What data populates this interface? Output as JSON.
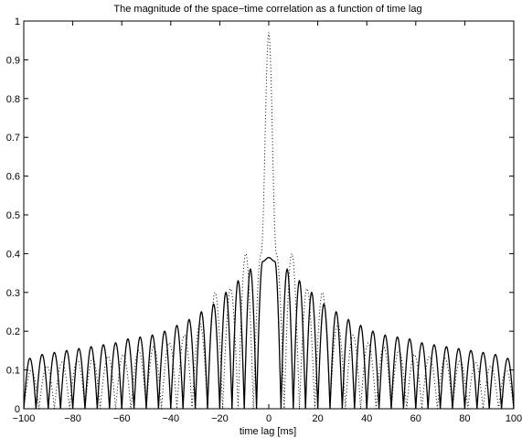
{
  "chart_data": {
    "type": "line",
    "title": "The magnitude of the space−time correlation as a function of time lag",
    "xlabel": "time lag [ms]",
    "ylabel": "",
    "xlim": [
      -100,
      100
    ],
    "ylim": [
      0,
      1
    ],
    "x_ticks": [
      -100,
      -80,
      -60,
      -40,
      -20,
      0,
      20,
      40,
      60,
      80,
      100
    ],
    "x_tick_labels": [
      "−100",
      "−80",
      "−60",
      "−40",
      "−20",
      "0",
      "20",
      "40",
      "60",
      "80",
      "100"
    ],
    "y_ticks": [
      0,
      0.1,
      0.2,
      0.3,
      0.4,
      0.5,
      0.6,
      0.7,
      0.8,
      0.9,
      1
    ],
    "y_tick_labels": [
      "0",
      "0.1",
      "0.2",
      "0.3",
      "0.4",
      "0.5",
      "0.6",
      "0.7",
      "0.8",
      "0.9",
      "1"
    ],
    "grid": false,
    "legend": "none",
    "series": [
      {
        "style": "solid",
        "color": "#000000",
        "x": [
          -100,
          -97.5,
          -95,
          -92.5,
          -90,
          -87.5,
          -85,
          -82.5,
          -80,
          -77.5,
          -75,
          -72.5,
          -70,
          -67.5,
          -65,
          -62.5,
          -60,
          -57.5,
          -55,
          -52.5,
          -50,
          -47.5,
          -45,
          -42.5,
          -40,
          -37.5,
          -35,
          -32.5,
          -30,
          -27.5,
          -25,
          -22.5,
          -20,
          -17.5,
          -15,
          -12.5,
          -10,
          -7.5,
          -5,
          -2.5,
          0,
          2.5,
          5,
          7.5,
          10,
          12.5,
          15,
          17.5,
          20,
          22.5,
          25,
          27.5,
          30,
          32.5,
          35,
          37.5,
          40,
          42.5,
          45,
          47.5,
          50,
          52.5,
          55,
          57.5,
          60,
          62.5,
          65,
          67.5,
          70,
          72.5,
          75,
          77.5,
          80,
          82.5,
          85,
          87.5,
          90,
          92.5,
          95,
          97.5,
          100
        ],
        "y": [
          0.0,
          0.13,
          0.0,
          0.14,
          0.0,
          0.145,
          0.0,
          0.15,
          0.0,
          0.155,
          0.0,
          0.16,
          0.0,
          0.165,
          0.0,
          0.17,
          0.0,
          0.18,
          0.0,
          0.185,
          0.0,
          0.19,
          0.0,
          0.2,
          0.0,
          0.215,
          0.0,
          0.23,
          0.0,
          0.25,
          0.0,
          0.27,
          0.0,
          0.3,
          0.0,
          0.33,
          0.0,
          0.36,
          0.0,
          0.38,
          0.39,
          0.38,
          0.0,
          0.36,
          0.0,
          0.33,
          0.0,
          0.3,
          0.0,
          0.27,
          0.0,
          0.25,
          0.0,
          0.23,
          0.0,
          0.215,
          0.0,
          0.2,
          0.0,
          0.19,
          0.0,
          0.185,
          0.0,
          0.18,
          0.0,
          0.17,
          0.0,
          0.165,
          0.0,
          0.16,
          0.0,
          0.155,
          0.0,
          0.15,
          0.0,
          0.145,
          0.0,
          0.14,
          0.0,
          0.13,
          0.0
        ]
      },
      {
        "style": "dotted",
        "color": "#000000",
        "x": [
          -100,
          -96.9,
          -93.8,
          -90.6,
          -87.5,
          -84.4,
          -81.3,
          -78.1,
          -75,
          -71.9,
          -68.8,
          -65.6,
          -62.5,
          -59.4,
          -56.3,
          -53.1,
          -50,
          -46.9,
          -43.8,
          -40.6,
          -37.5,
          -34.4,
          -31.3,
          -28.1,
          -25,
          -21.9,
          -18.8,
          -15.6,
          -12.5,
          -9.4,
          -6.3,
          -3.1,
          0,
          3.1,
          6.3,
          9.4,
          12.5,
          15.6,
          18.8,
          21.9,
          25,
          28.1,
          31.3,
          34.4,
          37.5,
          40.6,
          43.8,
          46.9,
          50,
          53.1,
          56.3,
          59.4,
          62.5,
          65.6,
          68.8,
          71.9,
          75,
          78.1,
          81.3,
          84.4,
          87.5,
          90.6,
          93.8,
          96.9,
          100
        ],
        "y": [
          0.0,
          0.1,
          0.0,
          0.11,
          0.0,
          0.12,
          0.0,
          0.125,
          0.0,
          0.13,
          0.0,
          0.135,
          0.0,
          0.14,
          0.0,
          0.15,
          0.0,
          0.16,
          0.0,
          0.17,
          0.0,
          0.19,
          0.0,
          0.22,
          0.0,
          0.3,
          0.0,
          0.31,
          0.0,
          0.4,
          0.0,
          0.4,
          0.97,
          0.4,
          0.0,
          0.4,
          0.0,
          0.31,
          0.0,
          0.3,
          0.0,
          0.22,
          0.0,
          0.19,
          0.0,
          0.17,
          0.0,
          0.16,
          0.0,
          0.15,
          0.0,
          0.14,
          0.0,
          0.135,
          0.0,
          0.13,
          0.0,
          0.125,
          0.0,
          0.12,
          0.0,
          0.11,
          0.0,
          0.1,
          0.0
        ]
      }
    ]
  }
}
